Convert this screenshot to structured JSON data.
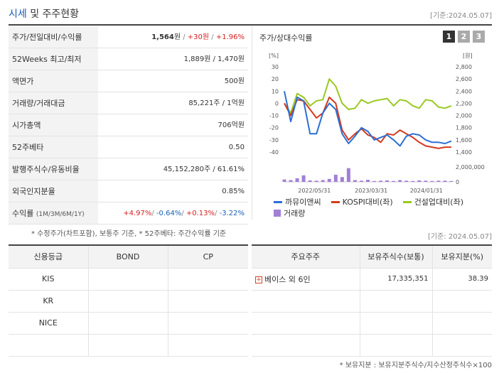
{
  "header": {
    "title_main": "시세",
    "title_rest": " 및 주주현황",
    "asof": "[기준:2024.05.07]"
  },
  "info": {
    "rows": [
      {
        "label": "주가/전일대비/수익률",
        "v1": "1,564",
        "u1": "원",
        "sep1": " / ",
        "v2": "+30원",
        "sep2": " / ",
        "v3": "+1.96%"
      },
      {
        "label": "52Weeks 최고/최저",
        "value": "1,889원 / 1,470원"
      },
      {
        "label": "액면가",
        "value": "500원"
      },
      {
        "label": "거래량/거래대금",
        "value": "85,221주 / 1억원"
      },
      {
        "label": "시가총액",
        "value": "706억원"
      },
      {
        "label": "52주베타",
        "value": "0.50"
      },
      {
        "label": "발행주식수/유동비율",
        "value": "45,152,280주 / 61.61%"
      },
      {
        "label": "외국인지분율",
        "value": "0.85%"
      }
    ],
    "return_row": {
      "label": "수익률",
      "label_small": "(1M/3M/6M/1Y)",
      "r1": "+4.97%",
      "r2": "-0.64%",
      "r3": "+0.13%",
      "r4": "-3.22%",
      "sep": "/ "
    }
  },
  "foot_note": "* 수정주가(차트포함), 보통주 기준, * 52주베타: 주간수익률 기준",
  "chart": {
    "title": "주가/상대수익률",
    "tabs": [
      "1",
      "2",
      "3"
    ],
    "left_unit": "[%]",
    "right_unit": "[원]",
    "volume_tick": "2,000,000",
    "volume_zero": "0",
    "legend": {
      "s1": "까뮤이앤씨",
      "s2": "KOSPI대비(좌)",
      "s3": "건설업대비(좌)",
      "s4": "거래량"
    },
    "colors": {
      "s1": "#2a6fd4",
      "s2": "#d43a1e",
      "s3": "#9ac920",
      "s4": "#a37fd6"
    }
  },
  "chart_data": {
    "type": "line",
    "x_ticks": [
      "2022/05/31",
      "2023/03/31",
      "2024/01/31"
    ],
    "y_left_ticks": [
      30,
      20,
      10,
      0,
      -10,
      -20,
      -30,
      -40
    ],
    "y_left_lim": [
      -40,
      30
    ],
    "y_right_ticks": [
      "2,800",
      "2,600",
      "2,400",
      "2,200",
      "2,000",
      "1,800",
      "1,600",
      "1,400"
    ],
    "y_right_lim": [
      1400,
      2800
    ],
    "series": [
      {
        "name": "까뮤이앤씨",
        "axis": "left",
        "values": [
          10,
          -15,
          5,
          2,
          -25,
          -25,
          -8,
          0,
          -5,
          -25,
          -33,
          -27,
          -20,
          -23,
          -30,
          -28,
          -26,
          -30,
          -35,
          -27,
          -25,
          -26,
          -30,
          -32,
          -32,
          -33,
          -31
        ]
      },
      {
        "name": "KOSPI대비(좌)",
        "axis": "left",
        "values": [
          0,
          -10,
          3,
          2,
          -5,
          -12,
          -8,
          5,
          0,
          -22,
          -30,
          -25,
          -21,
          -26,
          -28,
          -32,
          -25,
          -26,
          -22,
          -25,
          -28,
          -32,
          -35,
          -36,
          -37,
          -36,
          -36
        ]
      },
      {
        "name": "건설업대비(좌)",
        "axis": "left",
        "values": [
          0,
          -8,
          8,
          5,
          -2,
          2,
          3,
          20,
          14,
          0,
          -5,
          -4,
          3,
          0,
          2,
          3,
          4,
          -2,
          3,
          2,
          -2,
          -4,
          3,
          2,
          -3,
          -4,
          -2
        ]
      },
      {
        "name": "거래량",
        "axis": "volume",
        "values": [
          400000,
          300000,
          600000,
          1100000,
          250000,
          200000,
          300000,
          500000,
          1200000,
          800000,
          2300000,
          300000,
          200000,
          350000,
          150000,
          200000,
          250000,
          150000,
          300000,
          200000,
          150000,
          250000,
          200000,
          150000,
          200000,
          200000,
          150000
        ]
      }
    ],
    "volume_lim": [
      0,
      2500000
    ]
  },
  "asof2": "[기준: 2024.05.07]",
  "credit": {
    "headers": [
      "신용등급",
      "BOND",
      "CP"
    ],
    "rows": [
      [
        "KIS",
        "",
        ""
      ],
      [
        "KR",
        "",
        ""
      ],
      [
        "NICE",
        "",
        ""
      ],
      [
        "",
        "",
        ""
      ]
    ]
  },
  "holders": {
    "headers": [
      "주요주주",
      "보유주식수(보통)",
      "보유지분(%)"
    ],
    "rows": [
      {
        "name": "베이스 외 6인",
        "shares": "17,335,351",
        "pct": "38.39"
      },
      {
        "name": "",
        "shares": "",
        "pct": ""
      },
      {
        "name": "",
        "shares": "",
        "pct": ""
      },
      {
        "name": "",
        "shares": "",
        "pct": ""
      }
    ]
  },
  "note2": "* 보유지분 : 보유지분주식수/지수산정주식수×100"
}
